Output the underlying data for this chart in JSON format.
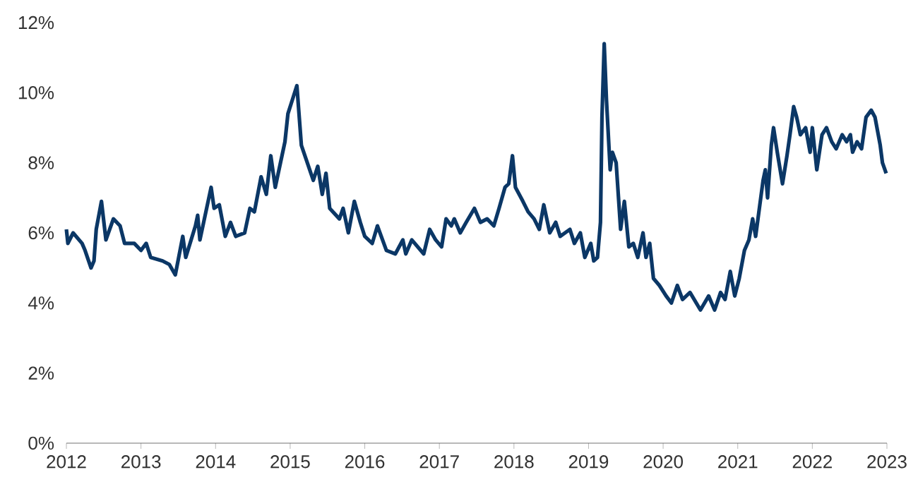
{
  "chart_data": {
    "type": "line",
    "color": "#0b3766",
    "x": [
      2012.0,
      2012.02,
      2012.09,
      2012.21,
      2012.25,
      2012.33,
      2012.37,
      2012.4,
      2012.47,
      2012.53,
      2012.63,
      2012.72,
      2012.78,
      2012.91,
      2013.0,
      2013.07,
      2013.13,
      2013.29,
      2013.38,
      2013.46,
      2013.56,
      2013.6,
      2013.73,
      2013.76,
      2013.79,
      2013.94,
      2013.98,
      2014.05,
      2014.13,
      2014.2,
      2014.27,
      2014.39,
      2014.46,
      2014.52,
      2014.61,
      2014.68,
      2014.74,
      2014.8,
      2014.87,
      2014.93,
      2014.97,
      2015.03,
      2015.09,
      2015.15,
      2015.31,
      2015.37,
      2015.43,
      2015.48,
      2015.53,
      2015.66,
      2015.71,
      2015.78,
      2015.86,
      2015.94,
      2016.0,
      2016.1,
      2016.17,
      2016.29,
      2016.41,
      2016.51,
      2016.55,
      2016.63,
      2016.79,
      2016.87,
      2016.95,
      2017.03,
      2017.09,
      2017.16,
      2017.2,
      2017.28,
      2017.36,
      2017.47,
      2017.55,
      2017.64,
      2017.73,
      2017.8,
      2017.88,
      2017.93,
      2017.98,
      2018.02,
      2018.12,
      2018.19,
      2018.27,
      2018.34,
      2018.4,
      2018.48,
      2018.56,
      2018.62,
      2018.75,
      2018.81,
      2018.89,
      2018.95,
      2019.03,
      2019.07,
      2019.12,
      2019.16,
      2019.18,
      2019.21,
      2019.24,
      2019.29,
      2019.32,
      2019.37,
      2019.43,
      2019.48,
      2019.54,
      2019.6,
      2019.66,
      2019.73,
      2019.77,
      2019.82,
      2019.87,
      2019.95,
      2020.04,
      2020.11,
      2020.19,
      2020.26,
      2020.36,
      2020.5,
      2020.61,
      2020.69,
      2020.77,
      2020.83,
      2020.9,
      2020.96,
      2021.02,
      2021.09,
      2021.15,
      2021.2,
      2021.24,
      2021.29,
      2021.34,
      2021.37,
      2021.4,
      2021.45,
      2021.48,
      2021.53,
      2021.6,
      2021.66,
      2021.7,
      2021.75,
      2021.79,
      2021.84,
      2021.91,
      2021.97,
      2022.0,
      2022.06,
      2022.13,
      2022.19,
      2022.26,
      2022.32,
      2022.4,
      2022.46,
      2022.51,
      2022.54,
      2022.6,
      2022.66,
      2022.72,
      2022.79,
      2022.84,
      2022.91,
      2022.94,
      2022.99
    ],
    "values": [
      6.1,
      5.7,
      6.0,
      5.7,
      5.5,
      5.0,
      5.2,
      6.1,
      6.9,
      5.8,
      6.4,
      6.2,
      5.7,
      5.7,
      5.5,
      5.7,
      5.3,
      5.2,
      5.1,
      4.8,
      5.9,
      5.3,
      6.2,
      6.5,
      5.8,
      7.3,
      6.7,
      6.8,
      5.9,
      6.3,
      5.9,
      6.0,
      6.7,
      6.6,
      7.6,
      7.1,
      8.2,
      7.3,
      8.0,
      8.6,
      9.4,
      9.8,
      10.2,
      8.5,
      7.5,
      7.9,
      7.1,
      7.7,
      6.7,
      6.4,
      6.7,
      6.0,
      6.9,
      6.3,
      5.9,
      5.7,
      6.2,
      5.5,
      5.4,
      5.8,
      5.4,
      5.8,
      5.4,
      6.1,
      5.8,
      5.6,
      6.4,
      6.2,
      6.4,
      6.0,
      6.3,
      6.7,
      6.3,
      6.4,
      6.2,
      6.7,
      7.3,
      7.4,
      8.2,
      7.3,
      6.9,
      6.6,
      6.4,
      6.1,
      6.8,
      6.0,
      6.3,
      5.9,
      6.1,
      5.7,
      6.0,
      5.3,
      5.7,
      5.2,
      5.3,
      6.3,
      9.3,
      11.4,
      9.8,
      7.8,
      8.3,
      8.0,
      6.1,
      6.9,
      5.6,
      5.7,
      5.3,
      6.0,
      5.3,
      5.7,
      4.7,
      4.5,
      4.2,
      4.0,
      4.5,
      4.1,
      4.3,
      3.8,
      4.2,
      3.8,
      4.3,
      4.1,
      4.9,
      4.2,
      4.7,
      5.5,
      5.8,
      6.4,
      5.9,
      6.7,
      7.5,
      7.8,
      7.0,
      8.5,
      9.0,
      8.3,
      7.4,
      8.2,
      8.8,
      9.6,
      9.3,
      8.8,
      9.0,
      8.3,
      9.0,
      7.8,
      8.8,
      9.0,
      8.6,
      8.4,
      8.8,
      8.6,
      8.8,
      8.3,
      8.6,
      8.4,
      9.3,
      9.5,
      9.3,
      8.5,
      8.0,
      7.7
    ],
    "xlim": [
      2012,
      2023
    ],
    "xticks": [
      2012,
      2013,
      2014,
      2015,
      2016,
      2017,
      2018,
      2019,
      2020,
      2021,
      2022,
      2023
    ],
    "ylim": [
      0,
      12
    ],
    "yticks": [
      {
        "value": 0,
        "label": "0%"
      },
      {
        "value": 2,
        "label": "2%"
      },
      {
        "value": 4,
        "label": "4%"
      },
      {
        "value": 6,
        "label": "6%"
      },
      {
        "value": 8,
        "label": "8%"
      },
      {
        "value": 10,
        "label": "10%"
      },
      {
        "value": 12,
        "label": "12%"
      }
    ],
    "grid": false,
    "marker": "none",
    "line_style": "solid"
  }
}
